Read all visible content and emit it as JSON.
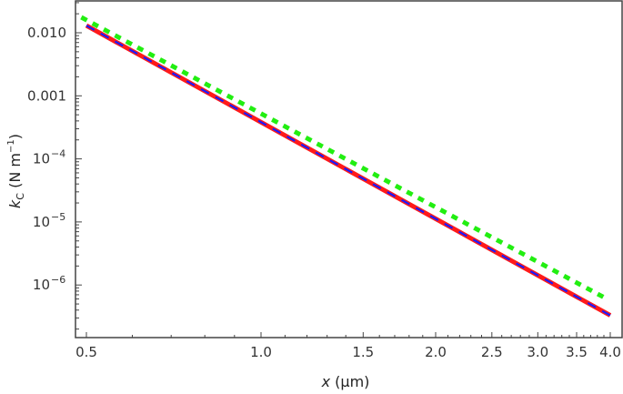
{
  "chart_data": {
    "type": "line",
    "title": "",
    "xlabel": "x (µm)",
    "xlabel_var": "x",
    "xlabel_unit": " (µm)",
    "ylabel": "k_C (N m^-1)",
    "ylabel_var": "k",
    "ylabel_sub": "C",
    "ylabel_unit_pre": " (N m",
    "ylabel_unit_sup": "−1",
    "ylabel_unit_post": ")",
    "xscale": "log",
    "yscale": "log",
    "xlim": [
      0.47,
      4.25
    ],
    "ylim": [
      1.5e-07,
      0.026
    ],
    "grid": false,
    "legend": "none",
    "x_ticks": [
      {
        "value": 0.5,
        "label": "0.5"
      },
      {
        "value": 1.0,
        "label": "1.0"
      },
      {
        "value": 1.5,
        "label": "1.5"
      },
      {
        "value": 2.0,
        "label": "2.0"
      },
      {
        "value": 2.5,
        "label": "2.5"
      },
      {
        "value": 3.0,
        "label": "3.0"
      },
      {
        "value": 3.5,
        "label": "3.5"
      },
      {
        "value": 4.0,
        "label": "4.0"
      }
    ],
    "y_ticks": [
      {
        "value": 0.01,
        "label": "0.010",
        "exp": ""
      },
      {
        "value": 0.001,
        "label": "0.001",
        "exp": ""
      },
      {
        "value": 0.0001,
        "label": "10",
        "exp": "−4"
      },
      {
        "value": 1e-05,
        "label": "10",
        "exp": "−5"
      },
      {
        "value": 1e-06,
        "label": "10",
        "exp": "−6"
      }
    ],
    "series": [
      {
        "name": "solid-red",
        "color": "#ff1a1a",
        "style": "solid",
        "width": 5,
        "x": [
          0.5,
          4.0
        ],
        "y": [
          0.013,
          3.3e-07
        ]
      },
      {
        "name": "dashed-blue",
        "color": "#1a1aff",
        "style": "dashed",
        "width": 2.2,
        "x": [
          0.5,
          4.0
        ],
        "y": [
          0.013,
          3.3e-07
        ]
      },
      {
        "name": "dotted-green",
        "color": "#22ee11",
        "style": "dotted",
        "width": 5,
        "x": [
          0.49,
          3.95
        ],
        "y": [
          0.0176,
          6e-07
        ]
      }
    ]
  }
}
